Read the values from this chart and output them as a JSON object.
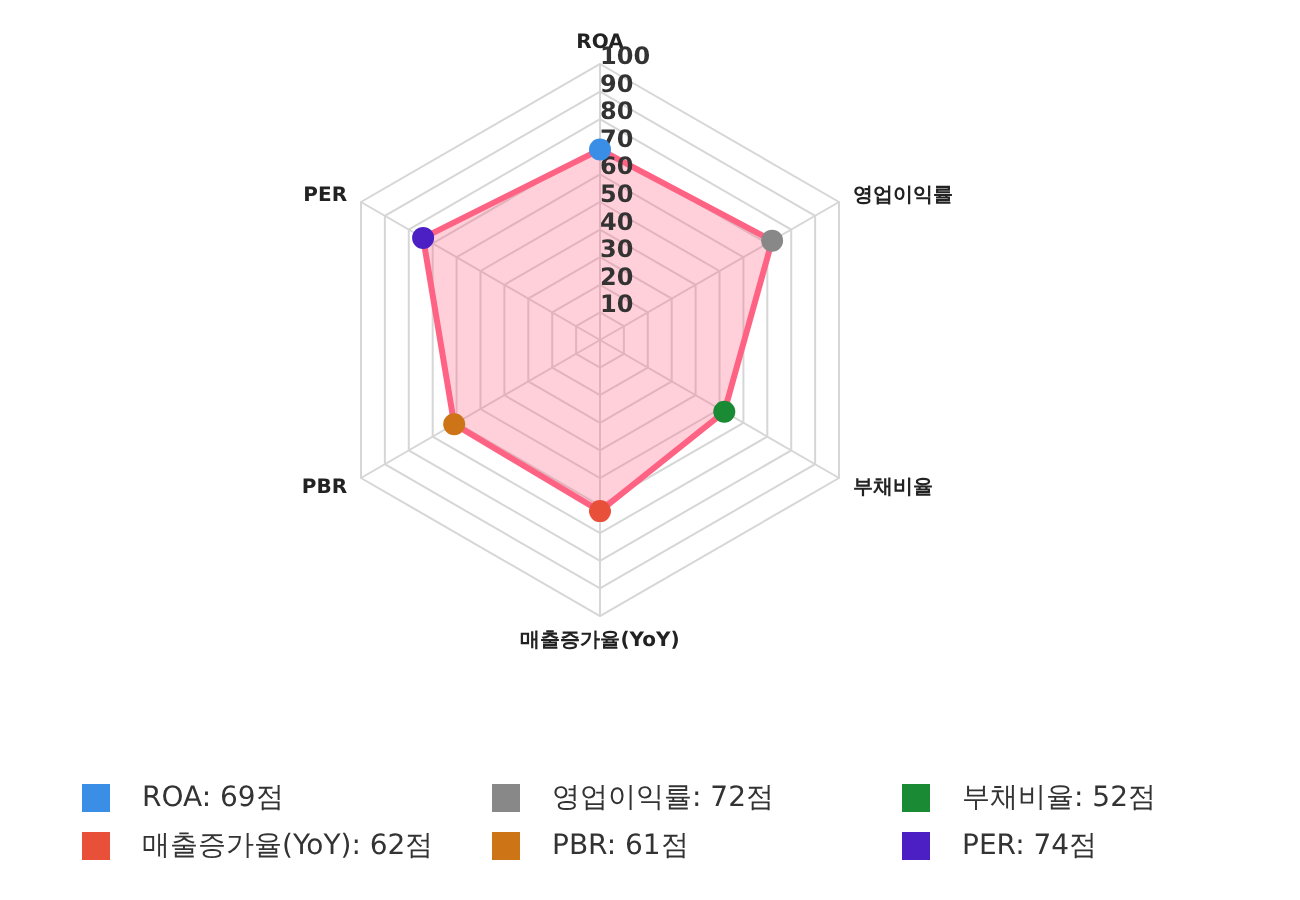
{
  "chart_data": {
    "type": "radar",
    "categories": [
      "ROA",
      "영업이익률",
      "부채비율",
      "매출증가율(YoY)",
      "PBR",
      "PER"
    ],
    "series": [
      {
        "color": "#ff6384",
        "values": [
          69,
          72,
          52,
          62,
          61,
          74
        ],
        "colors": [
          "#3a8ee6",
          "#888888",
          "#1a8a35",
          "#e8503a",
          "#cc7416",
          "#4b1fc4"
        ]
      }
    ],
    "annotations": [
      "ROA: 69점",
      "영업이익률: 72점",
      "부채비율: 52점",
      "매출증가율(YoY): 62점",
      "PBR: 61점",
      "PER: 74점"
    ],
    "ylim": [
      0,
      100
    ],
    "yticks": [
      10,
      20,
      30,
      40,
      50,
      60,
      70,
      80,
      90,
      100
    ],
    "grid": true,
    "marker": "circle"
  }
}
